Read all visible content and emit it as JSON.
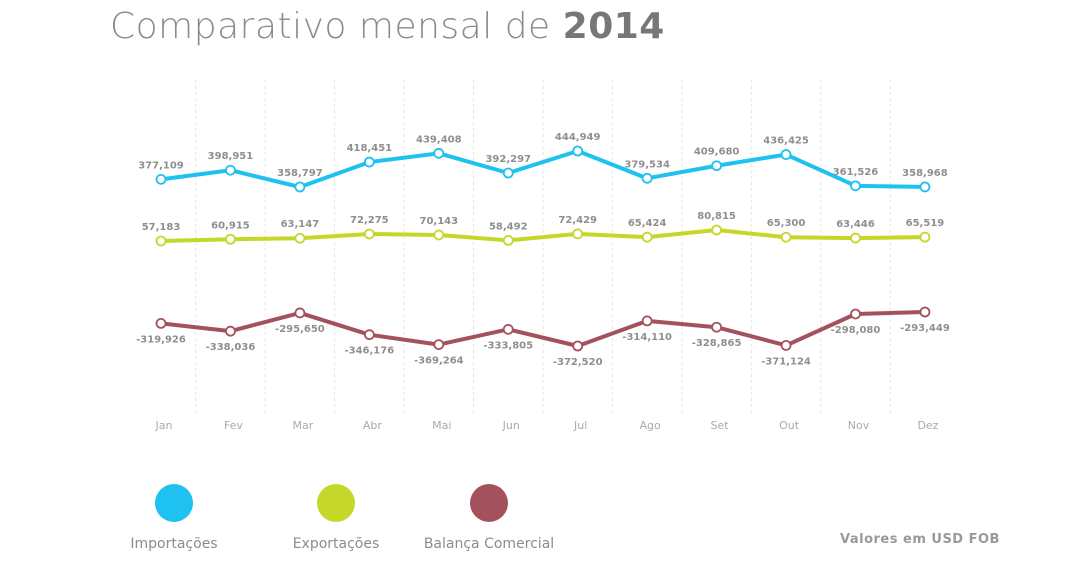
{
  "title": {
    "prefix": "Comparativo mensal de",
    "year": "2014"
  },
  "note": "Valores em USD FOB",
  "chart_data": {
    "type": "line",
    "title": "Comparativo mensal de 2014",
    "xlabel": "",
    "ylabel": "",
    "grid": "vertical dashed",
    "legend_position": "bottom-left",
    "categories": [
      "Jan",
      "Fev",
      "Mar",
      "Abr",
      "Mai",
      "Jun",
      "Jul",
      "Ago",
      "Set",
      "Out",
      "Nov",
      "Dez"
    ],
    "series": [
      {
        "name": "Importações",
        "color": "#1ec1ef",
        "values": [
          377109,
          398951,
          358797,
          418451,
          439408,
          392297,
          444949,
          379534,
          409680,
          436425,
          361526,
          358968
        ],
        "labels": [
          "377,109",
          "398,951",
          "358,797",
          "418,451",
          "439,408",
          "392,297",
          "444,949",
          "379,534",
          "409,680",
          "436,425",
          "361,526",
          "358,968"
        ]
      },
      {
        "name": "Exportações",
        "color": "#c5d82a",
        "values": [
          57183,
          60915,
          63147,
          72275,
          70143,
          58492,
          72429,
          65424,
          80815,
          65300,
          63446,
          65519
        ],
        "labels": [
          "57,183",
          "60,915",
          "63,147",
          "72,275",
          "70,143",
          "58,492",
          "72,429",
          "65,424",
          "80,815",
          "65,300",
          "63,446",
          "65,519"
        ]
      },
      {
        "name": "Balança Comercial",
        "color": "#a3525d",
        "values": [
          -319926,
          -338036,
          -295650,
          -346176,
          -369264,
          -333805,
          -372520,
          -314110,
          -328865,
          -371124,
          -298080,
          -293449
        ],
        "labels": [
          "-319,926",
          "-338,036",
          "-295,650",
          "-346,176",
          "-369,264",
          "-333,805",
          "-372,520",
          "-314,110",
          "-328,865",
          "-371,124",
          "-298,080",
          "-293,449"
        ]
      }
    ]
  }
}
